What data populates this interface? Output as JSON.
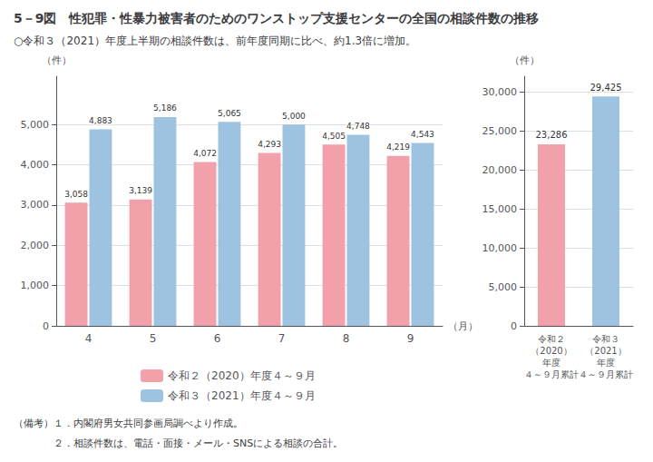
{
  "title": "5－9図　性犯罪・性暴力被害者のためのワンストップ支援センターの全国の相談件数の推移",
  "subtitle": "○令和３（2021）年度上半期の相談件数は、前年度同期に比べ、約1.3倍に増加。",
  "notes": [
    "（備考）１．内閣府男女共同参画局調べより作成。",
    "　　　　２．相談件数は、電話・面接・メール・SNSによる相談の合計。"
  ],
  "chart_data": [
    {
      "type": "bar",
      "xlabel": "（月）",
      "ylabel": "（件）",
      "categories": [
        "4",
        "5",
        "6",
        "7",
        "8",
        "9"
      ],
      "series": [
        {
          "name": "令和２（2020）年度４～９月",
          "color": "#F2A0AA",
          "values": [
            3058,
            3139,
            4072,
            4293,
            4505,
            4219
          ],
          "value_labels": [
            "3,058",
            "3,139",
            "4,072",
            "4,293",
            "4,505",
            "4,219"
          ]
        },
        {
          "name": "令和３（2021）年度４～９月",
          "color": "#9DC3E0",
          "values": [
            4883,
            5186,
            5065,
            5000,
            4748,
            4543
          ],
          "value_labels": [
            "4,883",
            "5,186",
            "5,065",
            "5,000",
            "4,748",
            "4,543"
          ]
        }
      ],
      "ylim": [
        0,
        6200
      ],
      "yticks": [
        0,
        {
          "value": 1000,
          "label": "1,000"
        },
        {
          "value": 2000,
          "label": "2,000"
        },
        {
          "value": 3000,
          "label": "3,000"
        },
        {
          "value": 4000,
          "label": "4,000"
        },
        {
          "value": 5000,
          "label": "5,000"
        }
      ],
      "grid": true,
      "legend": "bottom",
      "data_labels": true
    },
    {
      "type": "bar",
      "ylabel": "（件）",
      "categories": [
        "令和２\n（2020）\n年度\n４～９月累計",
        "令和３\n（2021）\n年度\n４～９月累計"
      ],
      "values": [
        23286,
        29425
      ],
      "value_labels": [
        "23,286",
        "29,425"
      ],
      "colors": [
        "#F2A0AA",
        "#9DC3E0"
      ],
      "ylim": [
        0,
        32000
      ],
      "yticks": [
        0,
        {
          "value": 5000,
          "label": "5,000"
        },
        {
          "value": 10000,
          "label": "10,000"
        },
        {
          "value": 15000,
          "label": "15,000"
        },
        {
          "value": 20000,
          "label": "20,000"
        },
        {
          "value": 25000,
          "label": "25,000"
        },
        {
          "value": 30000,
          "label": "30,000"
        }
      ],
      "grid": true,
      "data_labels": true
    }
  ]
}
